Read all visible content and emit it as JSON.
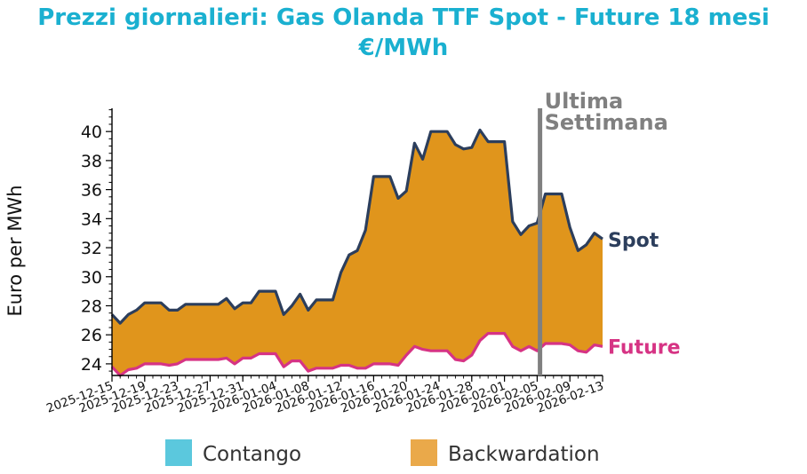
{
  "title_line1": "Prezzi giornalieri: Gas Olanda TTF Spot - Future 18 mesi",
  "title_line2": "€/MWh",
  "chart_data": {
    "type": "area",
    "ylabel": "Euro per MWh",
    "ylim": [
      23.2,
      41.6
    ],
    "yticks": [
      24,
      26,
      28,
      30,
      32,
      34,
      36,
      38,
      40
    ],
    "x_start": "2025-12-15",
    "x_end": "2026-02-13",
    "xtick_labels": [
      "2025-12-15",
      "2025-12-19",
      "2025-12-23",
      "2025-12-27",
      "2025-12-31",
      "2026-01-04",
      "2026-01-08",
      "2026-01-12",
      "2026-01-16",
      "2026-01-20",
      "2026-01-24",
      "2026-01-28",
      "2026-02-01",
      "2026-02-05",
      "2026-02-09",
      "2026-02-13"
    ],
    "x": [
      "2025-12-15",
      "2025-12-16",
      "2025-12-17",
      "2025-12-18",
      "2025-12-19",
      "2025-12-20",
      "2025-12-21",
      "2025-12-22",
      "2025-12-23",
      "2025-12-24",
      "2025-12-25",
      "2025-12-26",
      "2025-12-27",
      "2025-12-28",
      "2025-12-29",
      "2025-12-30",
      "2025-12-31",
      "2026-01-01",
      "2026-01-02",
      "2026-01-03",
      "2026-01-04",
      "2026-01-05",
      "2026-01-06",
      "2026-01-07",
      "2026-01-08",
      "2026-01-09",
      "2026-01-10",
      "2026-01-11",
      "2026-01-12",
      "2026-01-13",
      "2026-01-14",
      "2026-01-15",
      "2026-01-16",
      "2026-01-17",
      "2026-01-18",
      "2026-01-19",
      "2026-01-20",
      "2026-01-21",
      "2026-01-22",
      "2026-01-23",
      "2026-01-24",
      "2026-01-25",
      "2026-01-26",
      "2026-01-27",
      "2026-01-28",
      "2026-01-29",
      "2026-01-30",
      "2026-01-31",
      "2026-02-01",
      "2026-02-02",
      "2026-02-03",
      "2026-02-04",
      "2026-02-05",
      "2026-02-06",
      "2026-02-07",
      "2026-02-08",
      "2026-02-09",
      "2026-02-10",
      "2026-02-11",
      "2026-02-12",
      "2026-02-13"
    ],
    "series": [
      {
        "name": "Spot",
        "color": "#2c3e5c",
        "values": [
          27.4,
          26.8,
          27.4,
          27.7,
          28.2,
          28.2,
          28.2,
          27.7,
          27.7,
          28.1,
          28.1,
          28.1,
          28.1,
          28.1,
          28.5,
          27.8,
          28.2,
          28.2,
          29.0,
          29.0,
          29.0,
          27.4,
          28.0,
          28.8,
          27.7,
          28.4,
          28.4,
          28.4,
          30.3,
          31.5,
          31.8,
          33.2,
          36.9,
          36.9,
          36.9,
          35.4,
          35.9,
          39.2,
          38.1,
          40.0,
          40.0,
          40.0,
          39.1,
          38.8,
          38.9,
          40.1,
          39.3,
          39.3,
          39.3,
          33.8,
          32.9,
          33.5,
          33.7,
          35.7,
          35.7,
          35.7,
          33.4,
          31.8,
          32.2,
          33.0,
          32.6
        ]
      },
      {
        "name": "Future",
        "color": "#d63384",
        "values": [
          23.8,
          23.2,
          23.6,
          23.7,
          24.0,
          24.0,
          24.0,
          23.9,
          24.0,
          24.3,
          24.3,
          24.3,
          24.3,
          24.3,
          24.4,
          24.0,
          24.4,
          24.4,
          24.7,
          24.7,
          24.7,
          23.8,
          24.2,
          24.2,
          23.5,
          23.7,
          23.7,
          23.7,
          23.9,
          23.9,
          23.7,
          23.7,
          24.0,
          24.0,
          24.0,
          23.9,
          24.6,
          25.2,
          25.0,
          24.9,
          24.9,
          24.9,
          24.3,
          24.2,
          24.6,
          25.6,
          26.1,
          26.1,
          26.1,
          25.2,
          24.9,
          25.2,
          24.9,
          25.4,
          25.4,
          25.4,
          25.3,
          24.9,
          24.8,
          25.3,
          25.2
        ]
      }
    ],
    "fill_color": "#e0951c",
    "vline": {
      "x": "2026-02-06",
      "label_line1": "Ultima",
      "label_line2": "Settimana",
      "color": "#808080"
    },
    "legend": [
      {
        "label": "Contango",
        "color": "#5bc8dd"
      },
      {
        "label": "Backwardation",
        "color": "#eaa94a"
      }
    ],
    "legend_position": "bottom"
  }
}
